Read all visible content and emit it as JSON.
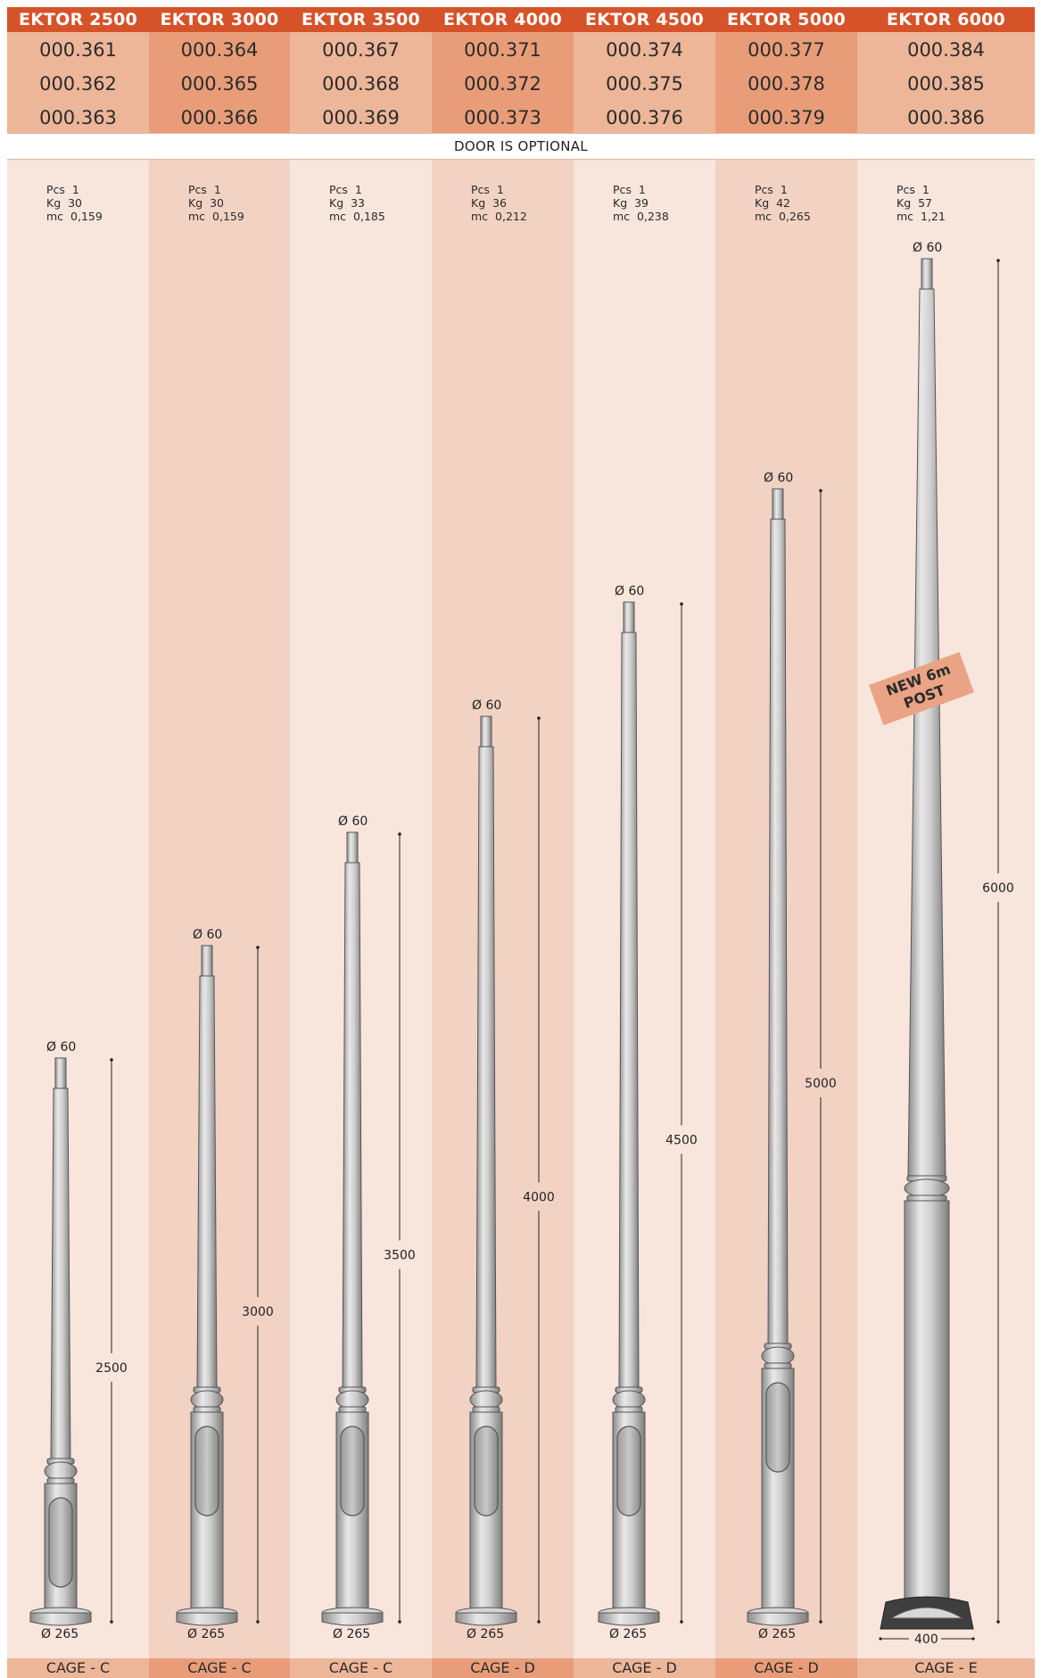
{
  "door_note": "DOOR IS OPTIONAL",
  "new_badge": {
    "line1": "NEW 6m",
    "line2": "POST"
  },
  "spec_labels": {
    "pcs": "Pcs",
    "kg": "Kg",
    "mc": "mc"
  },
  "colors": {
    "header": "#d6532a",
    "light_code": "#edb699",
    "dark_code": "#e89d78",
    "light_body": "#f8e5dc",
    "dark_body": "#f2d2c3",
    "badge": "#eaa384"
  },
  "models": [
    {
      "name": "EKTOR 2500",
      "codes": [
        "000.361",
        "000.362",
        "000.363"
      ],
      "pcs": "1",
      "kg": "30",
      "mc": "0,159",
      "top_diameter": "Ø 60",
      "base_diameter": "Ø 265",
      "height": "2500",
      "cage": "CAGE - C"
    },
    {
      "name": "EKTOR 3000",
      "codes": [
        "000.364",
        "000.365",
        "000.366"
      ],
      "pcs": "1",
      "kg": "30",
      "mc": "0,159",
      "top_diameter": "Ø 60",
      "base_diameter": "Ø 265",
      "height": "3000",
      "cage": "CAGE - C"
    },
    {
      "name": "EKTOR 3500",
      "codes": [
        "000.367",
        "000.368",
        "000.369"
      ],
      "pcs": "1",
      "kg": "33",
      "mc": "0,185",
      "top_diameter": "Ø 60",
      "base_diameter": "Ø 265",
      "height": "3500",
      "cage": "CAGE - C"
    },
    {
      "name": "EKTOR 4000",
      "codes": [
        "000.371",
        "000.372",
        "000.373"
      ],
      "pcs": "1",
      "kg": "36",
      "mc": "0,212",
      "top_diameter": "Ø 60",
      "base_diameter": "Ø 265",
      "height": "4000",
      "cage": "CAGE - D"
    },
    {
      "name": "EKTOR 4500",
      "codes": [
        "000.374",
        "000.375",
        "000.376"
      ],
      "pcs": "1",
      "kg": "39",
      "mc": "0,238",
      "top_diameter": "Ø 60",
      "base_diameter": "Ø 265",
      "height": "4500",
      "cage": "CAGE - D"
    },
    {
      "name": "EKTOR 5000",
      "codes": [
        "000.377",
        "000.378",
        "000.379"
      ],
      "pcs": "1",
      "kg": "42",
      "mc": "0,265",
      "top_diameter": "Ø 60",
      "base_diameter": "Ø 265",
      "height": "5000",
      "cage": "CAGE - D"
    },
    {
      "name": "EKTOR 6000",
      "codes": [
        "000.384",
        "000.385",
        "000.386"
      ],
      "pcs": "1",
      "kg": "57",
      "mc": "1,21",
      "top_diameter": "Ø 60",
      "base_width": "400",
      "height": "6000",
      "cage": "CAGE - E"
    }
  ]
}
